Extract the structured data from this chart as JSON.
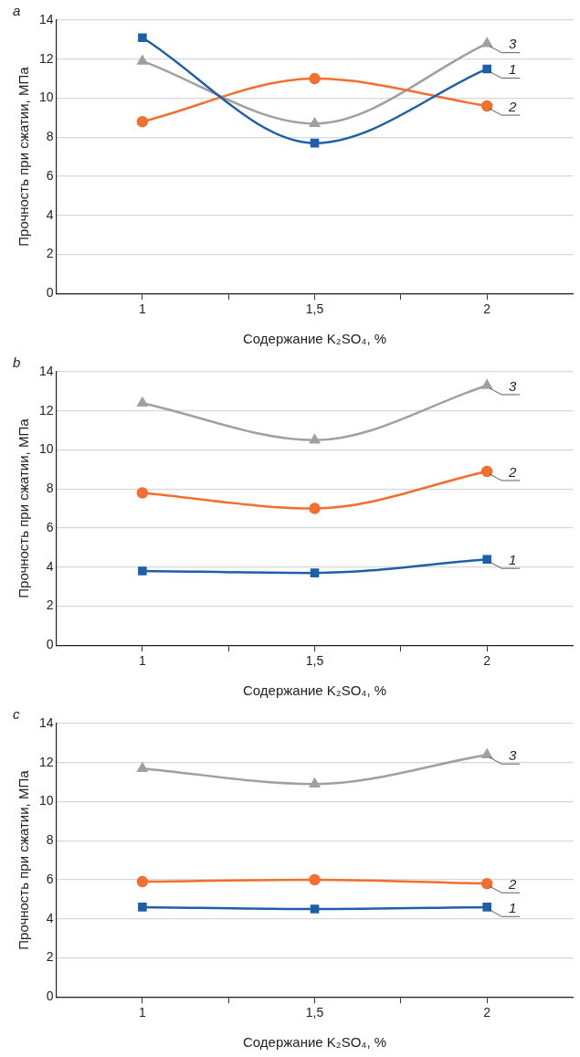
{
  "chart_data": [
    {
      "type": "line",
      "title": "a",
      "x": [
        1,
        1.5,
        2
      ],
      "xlabel": "Содержание K₂SO₄, %",
      "ylabel": "Прочность при сжатии, МПа",
      "xlim": [
        0.75,
        2.25
      ],
      "xticks": [
        {
          "value": 1,
          "label": "1"
        },
        {
          "value": 1.25,
          "label": null
        },
        {
          "value": 1.5,
          "label": "1,5"
        },
        {
          "value": 1.75,
          "label": null
        },
        {
          "value": 2,
          "label": "2"
        }
      ],
      "ylim": [
        0,
        14
      ],
      "yticks": [
        0,
        2,
        4,
        6,
        8,
        10,
        12,
        14
      ],
      "grid": "y",
      "legend": false,
      "series": [
        {
          "name": "1",
          "color": "#1f5fa8",
          "marker": "square",
          "values": [
            13.1,
            7.7,
            11.5
          ]
        },
        {
          "name": "2",
          "color": "#f07030",
          "marker": "circle",
          "values": [
            8.8,
            11.0,
            9.6
          ]
        },
        {
          "name": "3",
          "color": "#a0a0a0",
          "marker": "triangle",
          "values": [
            11.9,
            8.7,
            12.8
          ]
        }
      ]
    },
    {
      "type": "line",
      "title": "b",
      "x": [
        1,
        1.5,
        2
      ],
      "xlabel": "Содержание K₂SO₄, %",
      "ylabel": "Прочность при сжатии, МПа",
      "xlim": [
        0.75,
        2.25
      ],
      "xticks": [
        {
          "value": 1,
          "label": "1"
        },
        {
          "value": 1.25,
          "label": null
        },
        {
          "value": 1.5,
          "label": "1,5"
        },
        {
          "value": 1.75,
          "label": null
        },
        {
          "value": 2,
          "label": "2"
        }
      ],
      "ylim": [
        0,
        14
      ],
      "yticks": [
        0,
        2,
        4,
        6,
        8,
        10,
        12,
        14
      ],
      "grid": "y",
      "legend": false,
      "series": [
        {
          "name": "1",
          "color": "#1f5fa8",
          "marker": "square",
          "values": [
            3.8,
            3.7,
            4.4
          ]
        },
        {
          "name": "2",
          "color": "#f07030",
          "marker": "circle",
          "values": [
            7.8,
            7.0,
            8.9
          ]
        },
        {
          "name": "3",
          "color": "#a0a0a0",
          "marker": "triangle",
          "values": [
            12.4,
            10.5,
            13.3
          ]
        }
      ]
    },
    {
      "type": "line",
      "title": "c",
      "x": [
        1,
        1.5,
        2
      ],
      "xlabel": "Содержание K₂SO₄, %",
      "ylabel": "Прочность при сжатии, МПа",
      "xlim": [
        0.75,
        2.25
      ],
      "xticks": [
        {
          "value": 1,
          "label": "1"
        },
        {
          "value": 1.25,
          "label": null
        },
        {
          "value": 1.5,
          "label": "1,5"
        },
        {
          "value": 1.75,
          "label": null
        },
        {
          "value": 2,
          "label": "2"
        }
      ],
      "ylim": [
        0,
        14
      ],
      "yticks": [
        0,
        2,
        4,
        6,
        8,
        10,
        12,
        14
      ],
      "grid": "y",
      "legend": false,
      "series": [
        {
          "name": "1",
          "color": "#1f5fa8",
          "marker": "square",
          "values": [
            4.6,
            4.5,
            4.6
          ]
        },
        {
          "name": "2",
          "color": "#f07030",
          "marker": "circle",
          "values": [
            5.9,
            6.0,
            5.8
          ]
        },
        {
          "name": "3",
          "color": "#a0a0a0",
          "marker": "triangle",
          "values": [
            11.7,
            10.9,
            12.4
          ]
        }
      ]
    }
  ]
}
